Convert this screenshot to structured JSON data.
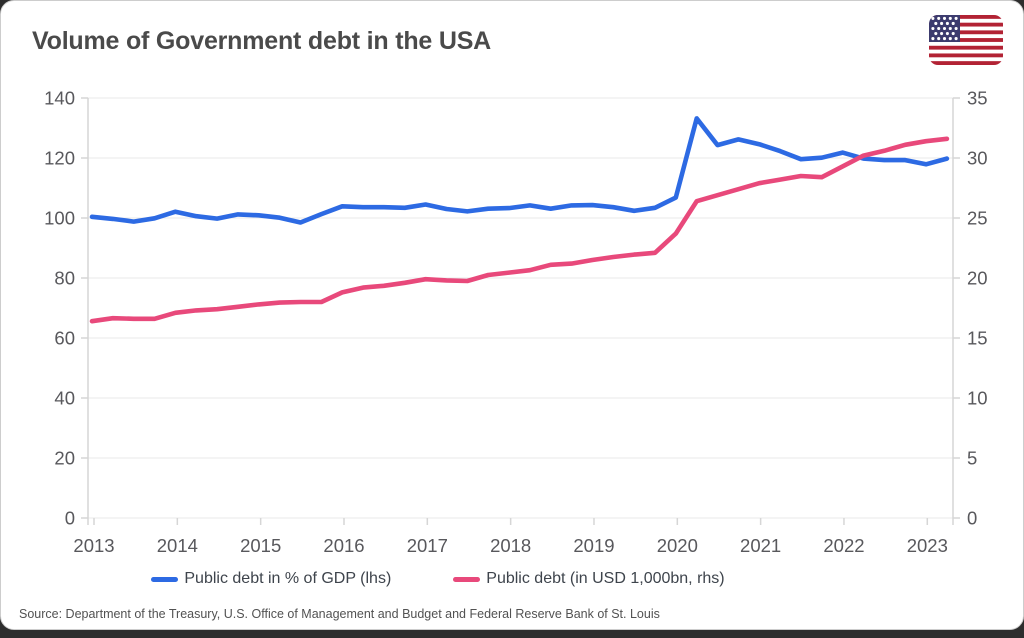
{
  "window": {
    "title": "Volume of Government debt in the USA",
    "source_note": "Source: Department of the Treasury, U.S. Office of Management and Budget and Federal Reserve Bank of St. Louis"
  },
  "flag_icon": {
    "name": "usa-flag",
    "stripe_red": "#B22234",
    "stripe_white": "#FFFFFF",
    "canton_blue": "#3C3B6E"
  },
  "colors": {
    "gdp_line": "#2d6ae3",
    "debt_line": "#e8497b",
    "grid": "#e8e8e8",
    "axis": "#d6d6d6",
    "tick_label": "#58585c",
    "title_text": "#4a4a4a"
  },
  "legend": {
    "items": [
      {
        "label": "Public debt in % of GDP (lhs)",
        "color": "#2d6ae3"
      },
      {
        "label": "Public debt (in USD 1,000bn, rhs)",
        "color": "#e8497b"
      }
    ]
  },
  "chart_data": {
    "type": "line",
    "title": "Volume of Government debt in the USA",
    "xlabel": "",
    "ylabel_left": "Public debt in % of GDP",
    "ylabel_right": "Public debt in USD 1,000bn",
    "grid": true,
    "legend_position": "bottom",
    "x_tick_labels": [
      "2013",
      "2014",
      "2015",
      "2016",
      "2017",
      "2018",
      "2019",
      "2020",
      "2021",
      "2022",
      "2023"
    ],
    "left_axis": {
      "min": 0,
      "max": 140,
      "ticks": [
        140,
        120,
        100,
        80,
        60,
        40,
        20,
        0
      ]
    },
    "right_axis": {
      "min": 0,
      "max": 35,
      "ticks": [
        35,
        30,
        25,
        20,
        15,
        10,
        5,
        0
      ]
    },
    "x": [
      "2013Q1",
      "2013Q2",
      "2013Q3",
      "2013Q4",
      "2014Q1",
      "2014Q2",
      "2014Q3",
      "2014Q4",
      "2015Q1",
      "2015Q2",
      "2015Q3",
      "2015Q4",
      "2016Q1",
      "2016Q2",
      "2016Q3",
      "2016Q4",
      "2017Q1",
      "2017Q2",
      "2017Q3",
      "2017Q4",
      "2018Q1",
      "2018Q2",
      "2018Q3",
      "2018Q4",
      "2019Q1",
      "2019Q2",
      "2019Q3",
      "2019Q4",
      "2020Q1",
      "2020Q2",
      "2020Q3",
      "2020Q4",
      "2021Q1",
      "2021Q2",
      "2021Q3",
      "2021Q4",
      "2022Q1",
      "2022Q2",
      "2022Q3",
      "2022Q4",
      "2023Q1",
      "2023Q2"
    ],
    "series": [
      {
        "name": "Public debt in % of GDP (lhs)",
        "axis": "left",
        "color": "#2d6ae3",
        "values": [
          100.4,
          99.7,
          98.8,
          99.9,
          102.1,
          100.6,
          99.8,
          101.2,
          100.9,
          100.1,
          98.5,
          101.3,
          103.9,
          103.6,
          103.6,
          103.4,
          104.5,
          103.0,
          102.2,
          103.1,
          103.3,
          104.2,
          103.1,
          104.2,
          104.3,
          103.6,
          102.4,
          103.4,
          106.8,
          133.2,
          124.3,
          126.2,
          124.6,
          122.3,
          119.6,
          120.1,
          121.8,
          119.8,
          119.3,
          119.3,
          117.9,
          119.8
        ]
      },
      {
        "name": "Public debt (in USD 1,000bn, rhs)",
        "axis": "right",
        "color": "#e8497b",
        "values": [
          16.4,
          16.65,
          16.6,
          16.6,
          17.1,
          17.3,
          17.4,
          17.6,
          17.8,
          17.95,
          18.0,
          18.0,
          18.8,
          19.2,
          19.35,
          19.6,
          19.9,
          19.8,
          19.75,
          20.25,
          20.45,
          20.65,
          21.1,
          21.2,
          21.5,
          21.75,
          21.95,
          22.1,
          23.7,
          26.4,
          26.9,
          27.4,
          27.9,
          28.2,
          28.5,
          28.4,
          29.3,
          30.2,
          30.6,
          31.1,
          31.4,
          31.6
        ]
      }
    ]
  }
}
